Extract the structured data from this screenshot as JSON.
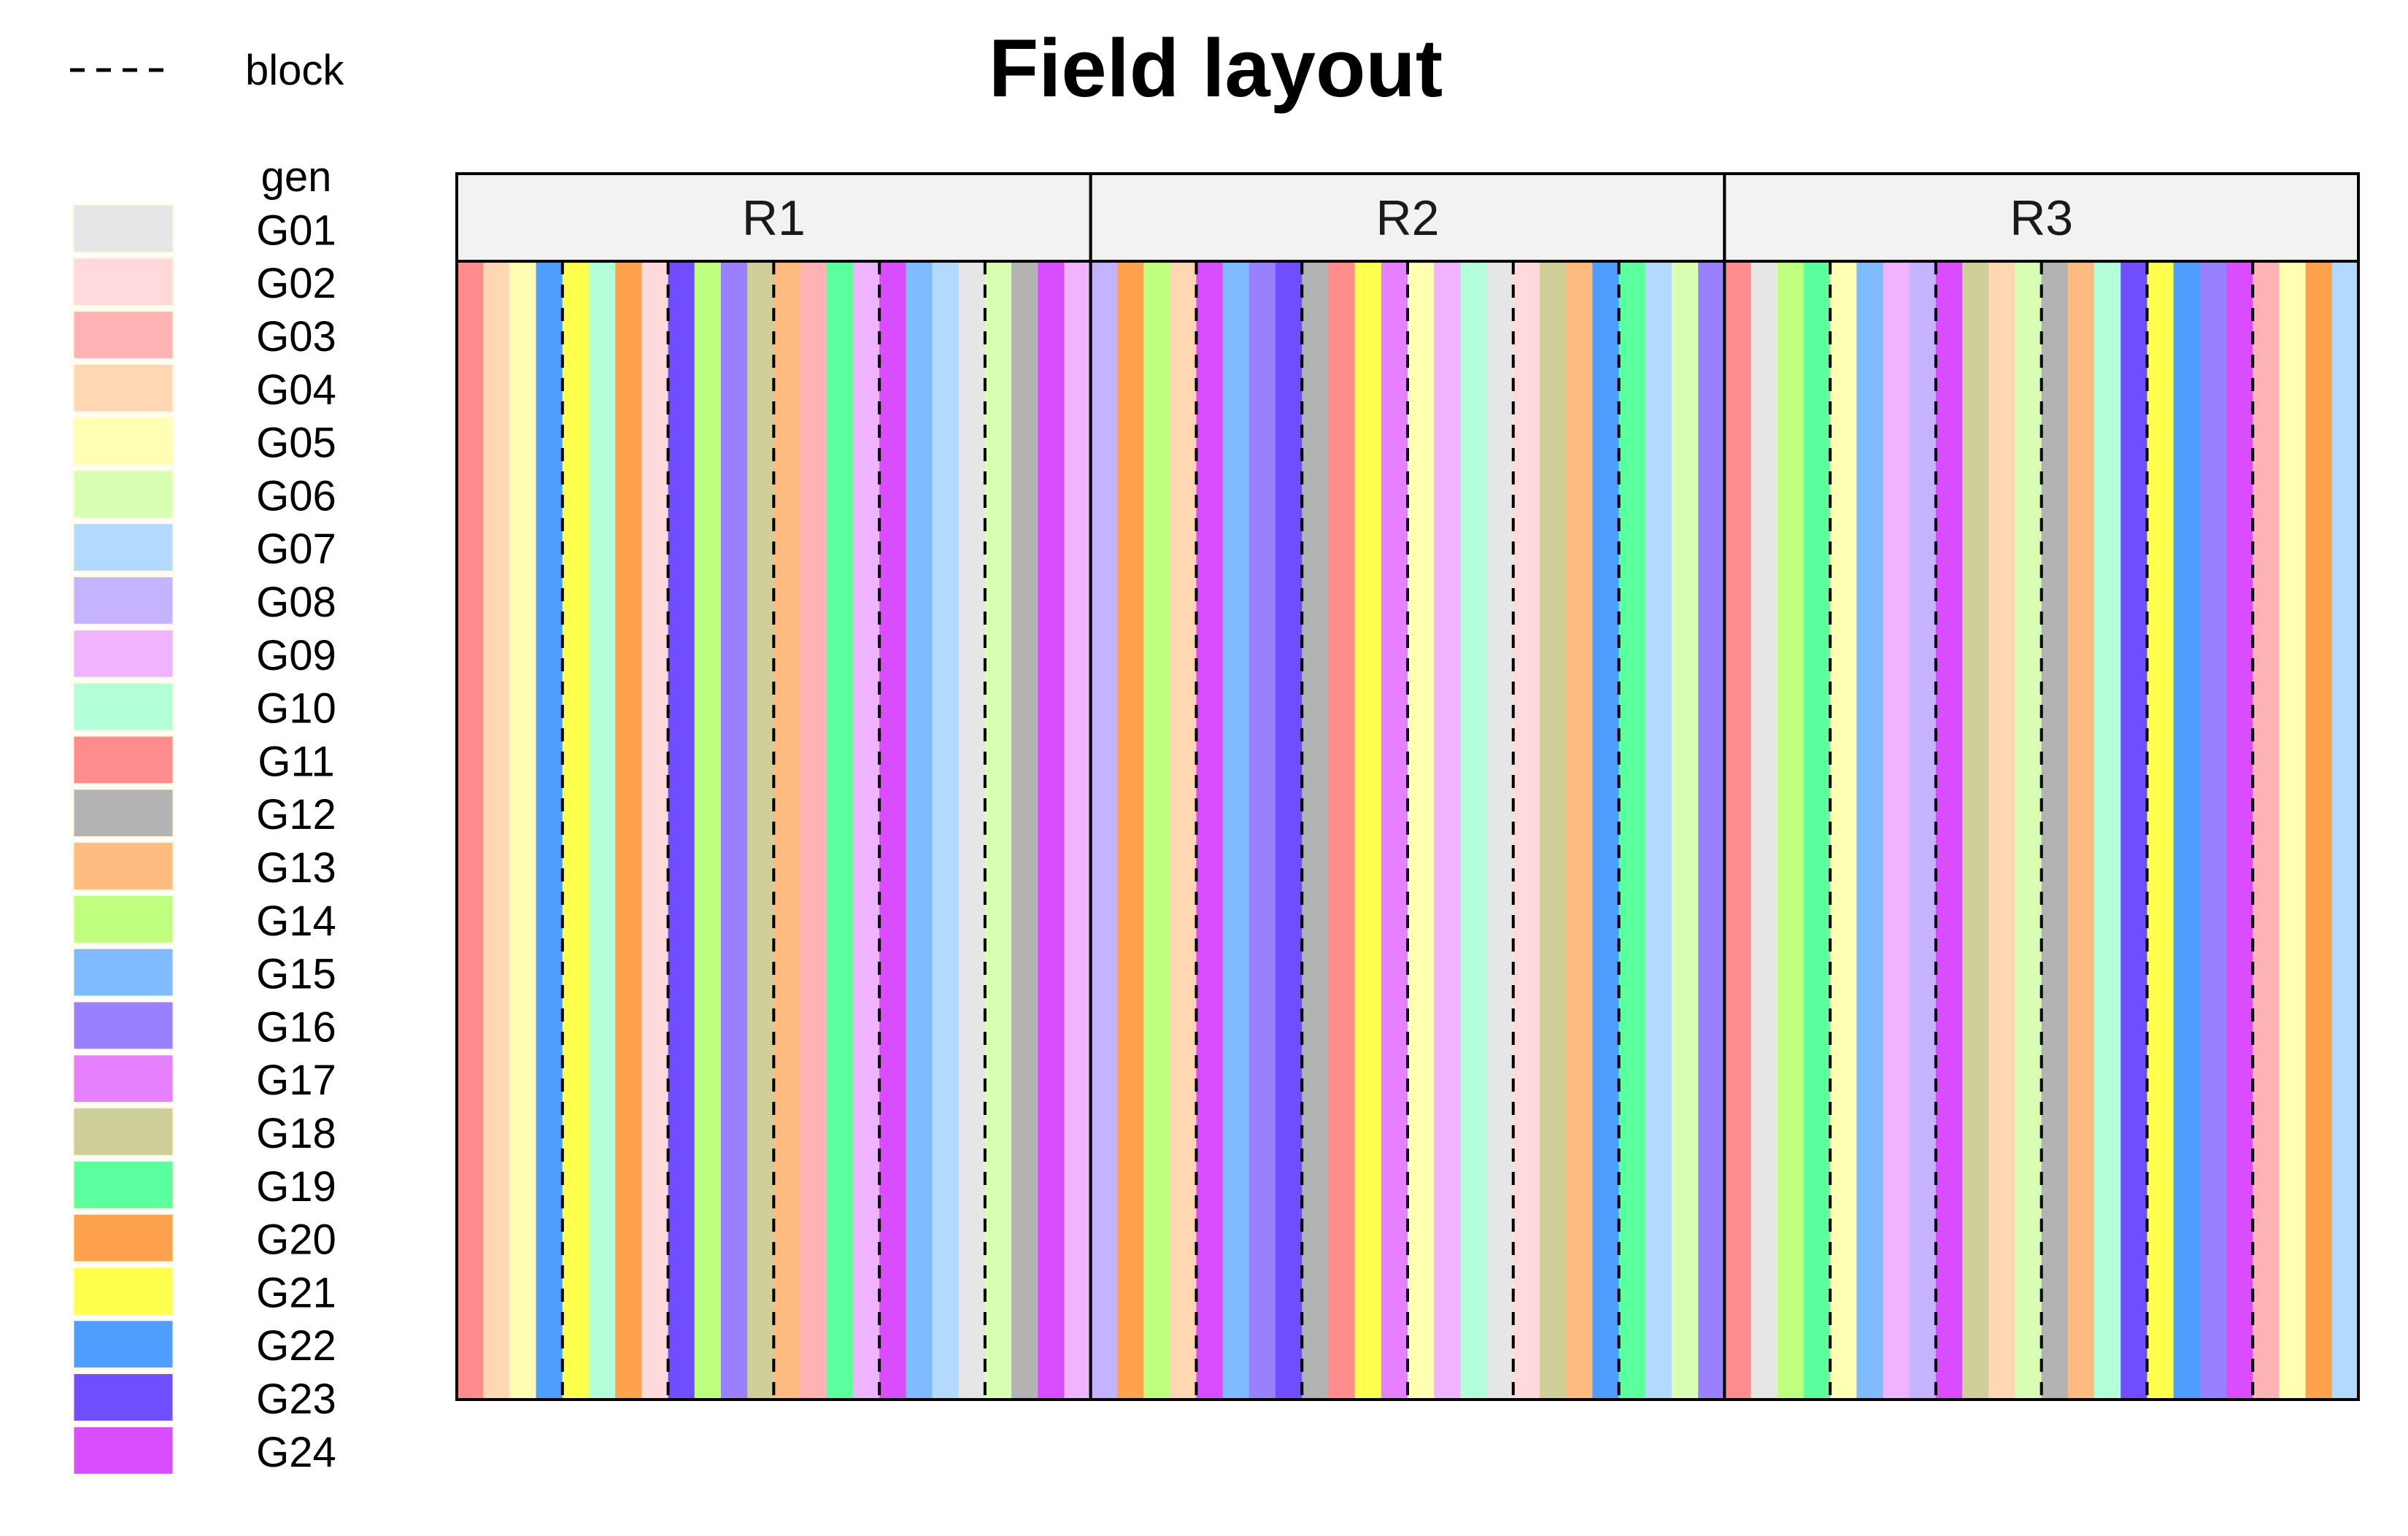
{
  "chart_data": {
    "type": "heatmap",
    "title": "Field layout",
    "legend_block_label": "block",
    "legend_gen_title": "gen",
    "genotypes": [
      "G01",
      "G02",
      "G03",
      "G04",
      "G05",
      "G06",
      "G07",
      "G08",
      "G09",
      "G10",
      "G11",
      "G12",
      "G13",
      "G14",
      "G15",
      "G16",
      "G17",
      "G18",
      "G19",
      "G20",
      "G21",
      "G22",
      "G23",
      "G24"
    ],
    "colors": {
      "G01": "#e6e6e6",
      "G02": "#ffd9dc",
      "G03": "#ffb3b5",
      "G04": "#ffd7b3",
      "G05": "#ffffb3",
      "G06": "#d9ffb3",
      "G07": "#b3d9ff",
      "G08": "#c6b3ff",
      "G09": "#efb3ff",
      "G10": "#b3ffd9",
      "G11": "#ff8c8c",
      "G12": "#b3b3b3",
      "G13": "#ffbb80",
      "G14": "#bfff80",
      "G15": "#80bbff",
      "G16": "#9980ff",
      "G17": "#e680ff",
      "G18": "#cfcf99",
      "G19": "#5cff9e",
      "G20": "#ffa24d",
      "G21": "#ffff4d",
      "G22": "#4d9eff",
      "G23": "#704dff",
      "G24": "#d94dff"
    },
    "panels": [
      {
        "label": "R1",
        "plots": [
          "G11",
          "G04",
          "G05",
          "G22",
          "G21",
          "G10",
          "G20",
          "G02",
          "G23",
          "G14",
          "G16",
          "G18",
          "G13",
          "G03",
          "G19",
          "G09",
          "G24",
          "G15",
          "G07",
          "G01",
          "G06",
          "G12",
          "G24",
          "G09"
        ],
        "block_after": [
          4,
          8,
          12,
          16,
          20
        ]
      },
      {
        "label": "R2",
        "plots": [
          "G08",
          "G20",
          "G14",
          "G04",
          "G24",
          "G15",
          "G16",
          "G23",
          "G12",
          "G11",
          "G21",
          "G17",
          "G05",
          "G09",
          "G10",
          "G01",
          "G02",
          "G18",
          "G13",
          "G22",
          "G19",
          "G07",
          "G06",
          "G16"
        ],
        "block_after": [
          4,
          8,
          12,
          16,
          20
        ]
      },
      {
        "label": "R3",
        "plots": [
          "G11",
          "G01",
          "G14",
          "G19",
          "G05",
          "G15",
          "G09",
          "G08",
          "G24",
          "G18",
          "G04",
          "G06",
          "G12",
          "G13",
          "G10",
          "G23",
          "G21",
          "G22",
          "G16",
          "G24",
          "G03",
          "G05",
          "G20",
          "G07"
        ],
        "block_after": [
          4,
          8,
          12,
          16,
          20
        ]
      }
    ]
  }
}
